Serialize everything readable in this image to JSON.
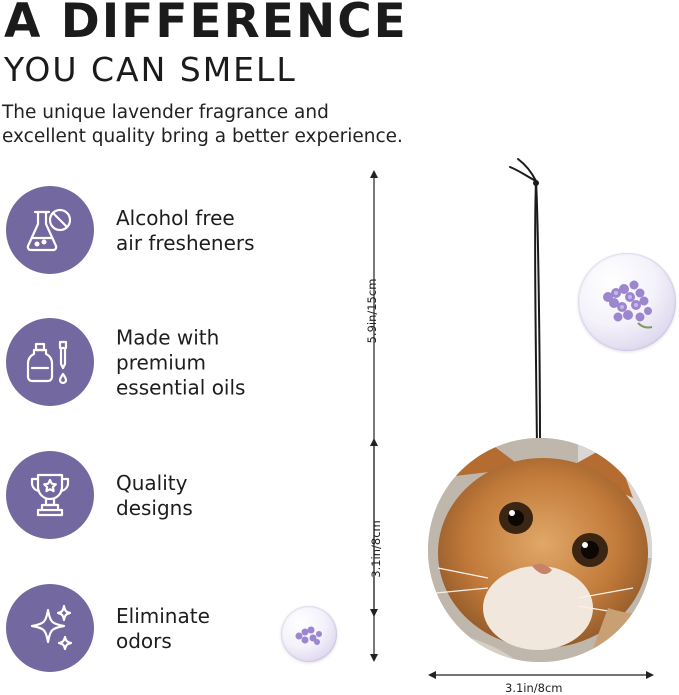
{
  "header": {
    "title_line1": "A DIFFERENCE",
    "title_line2": "YOU CAN SMELL",
    "subtitle_line1": "The unique lavender fragrance and",
    "subtitle_line2": "excellent quality bring a better experience."
  },
  "features": [
    {
      "icon": "flask-no-alcohol-icon",
      "lines": [
        "Alcohol free",
        "air fresheners"
      ]
    },
    {
      "icon": "essential-oil-bottle-icon",
      "lines": [
        "Made with",
        "premium",
        "essential oils"
      ]
    },
    {
      "icon": "trophy-icon",
      "lines": [
        "Quality",
        "designs"
      ]
    },
    {
      "icon": "sparkle-icon",
      "lines": [
        "Eliminate",
        "odors"
      ]
    }
  ],
  "dimensions": {
    "string_length": "5.9in/15cm",
    "ornament_height": "3.1in/8cm",
    "ornament_width": "3.1in/8cm"
  },
  "colors": {
    "icon_circle": "#73689f",
    "text": "#1d1d1d",
    "lavender": "#9b86cf"
  }
}
